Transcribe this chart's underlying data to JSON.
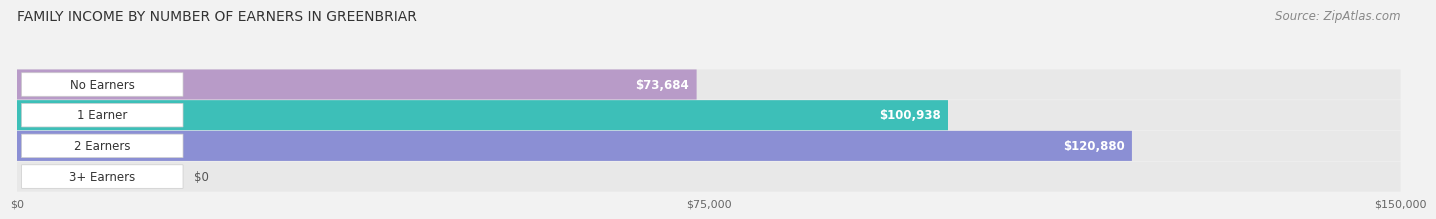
{
  "title": "FAMILY INCOME BY NUMBER OF EARNERS IN GREENBRIAR",
  "source": "Source: ZipAtlas.com",
  "categories": [
    "No Earners",
    "1 Earner",
    "2 Earners",
    "3+ Earners"
  ],
  "values": [
    73684,
    100938,
    120880,
    0
  ],
  "bar_colors": [
    "#b89bc8",
    "#3dbfb8",
    "#8b8fd4",
    "#f4a0b5"
  ],
  "xlim": [
    0,
    150000
  ],
  "xtick_labels": [
    "$0",
    "$75,000",
    "$150,000"
  ],
  "background_color": "#f2f2f2",
  "bar_bg_color": "#e8e8e8",
  "title_fontsize": 10,
  "source_fontsize": 8.5,
  "bar_height": 0.62,
  "label_fontsize": 8.5,
  "value_fontsize": 8.5
}
